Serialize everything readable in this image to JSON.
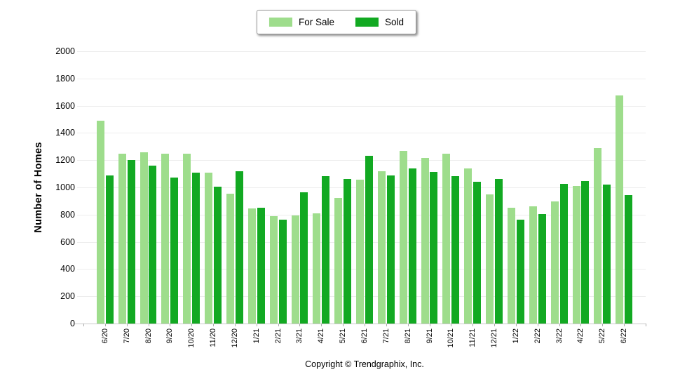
{
  "chart_data": {
    "type": "bar",
    "title": "",
    "ylabel": "Number of Homes",
    "xlabel": "",
    "ylim": [
      0,
      2000
    ],
    "yticks": [
      0,
      200,
      400,
      600,
      800,
      1000,
      1200,
      1400,
      1600,
      1800,
      2000
    ],
    "grid": true,
    "legend_position": "top-center",
    "categories": [
      "6/20",
      "7/20",
      "8/20",
      "9/20",
      "10/20",
      "11/20",
      "12/20",
      "1/21",
      "2/21",
      "3/21",
      "4/21",
      "5/21",
      "6/21",
      "7/21",
      "8/21",
      "9/21",
      "10/21",
      "11/21",
      "12/21",
      "1/22",
      "2/22",
      "3/22",
      "4/22",
      "5/22",
      "6/22"
    ],
    "series": [
      {
        "name": "For Sale",
        "color": "#9EDD8C",
        "values": [
          1490,
          1245,
          1260,
          1250,
          1245,
          1110,
          955,
          845,
          790,
          795,
          810,
          925,
          1055,
          1120,
          1270,
          1215,
          1250,
          1140,
          950,
          850,
          860,
          895,
          1010,
          1290,
          1675
        ]
      },
      {
        "name": "Sold",
        "color": "#12A922",
        "values": [
          1090,
          1200,
          1160,
          1070,
          1110,
          1005,
          1120,
          850,
          765,
          965,
          1085,
          1060,
          1230,
          1090,
          1140,
          1115,
          1080,
          1040,
          1060,
          765,
          805,
          1025,
          1045,
          1020,
          945
        ]
      }
    ]
  },
  "footer": {
    "copyright": "Copyright © Trendgraphix, Inc."
  }
}
